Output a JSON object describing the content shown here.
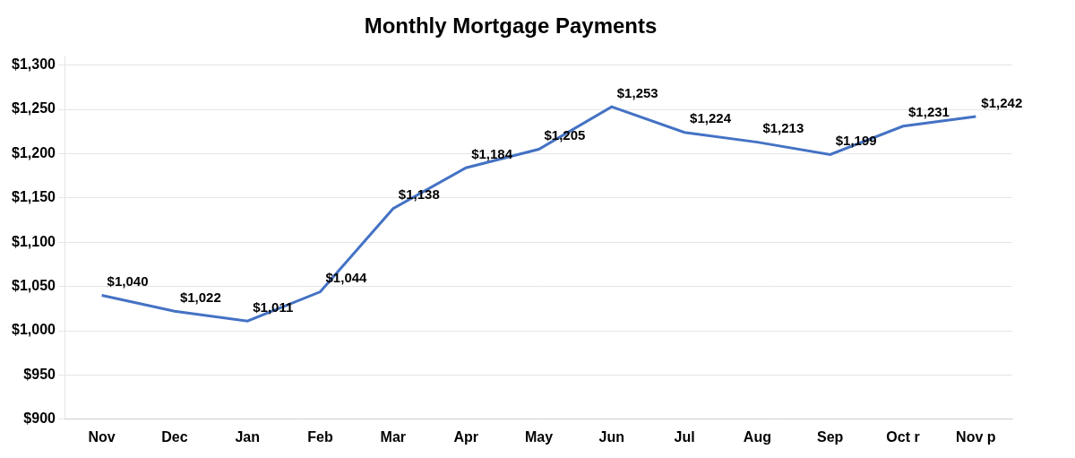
{
  "chart_data": {
    "type": "line",
    "title": "Monthly Mortgage Payments",
    "categories": [
      "Nov",
      "Dec",
      "Jan",
      "Feb",
      "Mar",
      "Apr",
      "May",
      "Jun",
      "Jul",
      "Aug",
      "Sep",
      "Oct r",
      "Nov p"
    ],
    "values": [
      1040,
      1022,
      1011,
      1044,
      1138,
      1184,
      1205,
      1253,
      1224,
      1213,
      1199,
      1231,
      1242
    ],
    "value_labels": [
      "$1,040",
      "$1,022",
      "$1,011",
      "$1,044",
      "$1,138",
      "$1,184",
      "$1,205",
      "$1,253",
      "$1,224",
      "$1,213",
      "$1,199",
      "$1,231",
      "$1,242"
    ],
    "color": "#4472C4",
    "ylim": [
      900,
      1310
    ],
    "yticks": [
      {
        "value": 900,
        "label": "$900"
      },
      {
        "value": 950,
        "label": "$950"
      },
      {
        "value": 1000,
        "label": "$1,000"
      },
      {
        "value": 1050,
        "label": "$1,050"
      },
      {
        "value": 1100,
        "label": "$1,100"
      },
      {
        "value": 1150,
        "label": "$1,150"
      },
      {
        "value": 1200,
        "label": "$1,200"
      },
      {
        "value": 1250,
        "label": "$1,250"
      },
      {
        "value": 1300,
        "label": "$1,300"
      }
    ],
    "grid": true,
    "data_labels": true
  }
}
